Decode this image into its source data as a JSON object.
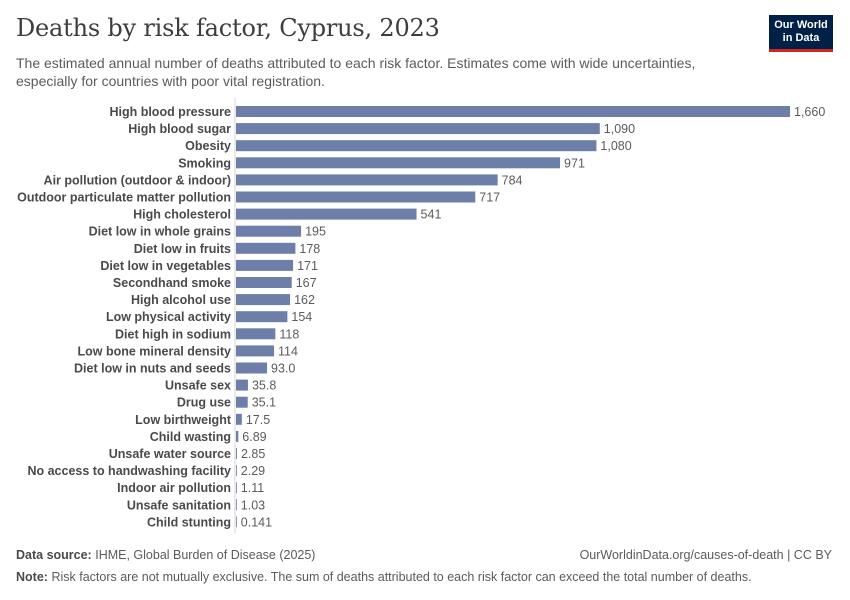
{
  "title": "Deaths by risk factor, Cyprus, 2023",
  "subtitle": "The estimated annual number of deaths attributed to each risk factor. Estimates come with wide uncertainties, especially for countries with poor vital registration.",
  "logo": {
    "line1": "Our World",
    "line2": "in Data"
  },
  "footer": {
    "source_label": "Data source:",
    "source_text": "IHME, Global Burden of Disease (2025)",
    "url": "OurWorldinData.org/causes-of-death | CC BY",
    "note_label": "Note:",
    "note_text": "Risk factors are not mutually exclusive. The sum of deaths attributed to each risk factor can exceed the total number of deaths."
  },
  "colors": {
    "bar": "#6d7fa8",
    "logo_bg": "#002147",
    "logo_accent": "#ce261e"
  },
  "chart_data": {
    "type": "bar",
    "orientation": "horizontal",
    "title": "Deaths by risk factor, Cyprus, 2023",
    "xlabel": "",
    "ylabel": "",
    "xlim": [
      0,
      1660
    ],
    "categories": [
      "High blood pressure",
      "High blood sugar",
      "Obesity",
      "Smoking",
      "Air pollution (outdoor & indoor)",
      "Outdoor particulate matter pollution",
      "High cholesterol",
      "Diet low in whole grains",
      "Diet low in fruits",
      "Diet low in vegetables",
      "Secondhand smoke",
      "High alcohol use",
      "Low physical activity",
      "Diet high in sodium",
      "Low bone mineral density",
      "Diet low in nuts and seeds",
      "Unsafe sex",
      "Drug use",
      "Low birthweight",
      "Child wasting",
      "Unsafe water source",
      "No access to handwashing facility",
      "Indoor air pollution",
      "Unsafe sanitation",
      "Child stunting"
    ],
    "values": [
      1660,
      1090,
      1080,
      971,
      784,
      717,
      541,
      195,
      178,
      171,
      167,
      162,
      154,
      118,
      114,
      93.0,
      35.8,
      35.1,
      17.5,
      6.89,
      2.85,
      2.29,
      1.11,
      1.03,
      0.141
    ],
    "value_labels": [
      "1,660",
      "1,090",
      "1,080",
      "971",
      "784",
      "717",
      "541",
      "195",
      "178",
      "171",
      "167",
      "162",
      "154",
      "118",
      "114",
      "93.0",
      "35.8",
      "35.1",
      "17.5",
      "6.89",
      "2.85",
      "2.29",
      "1.11",
      "1.03",
      "0.141"
    ]
  }
}
